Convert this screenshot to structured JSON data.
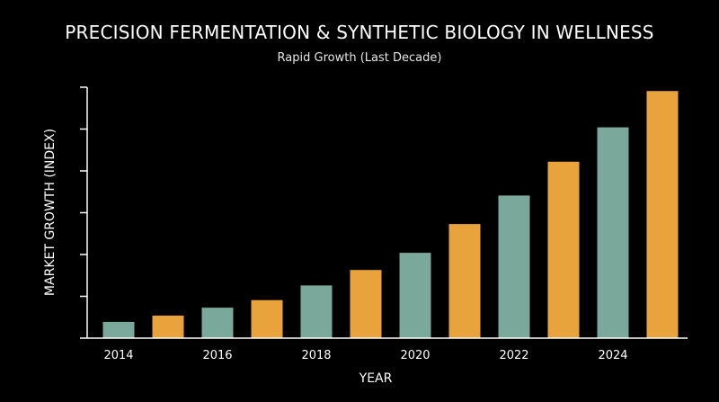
{
  "chart_data": {
    "type": "bar",
    "title": "PRECISION FERMENTATION & SYNTHETIC BIOLOGY IN WELLNESS",
    "subtitle": "Rapid Growth (Last Decade)",
    "xlabel": "YEAR",
    "ylabel": "MARKET GROWTH (INDEX)",
    "categories": [
      "2014",
      "2015",
      "2016",
      "2017",
      "2018",
      "2019",
      "2020",
      "2021",
      "2022",
      "2023",
      "2024",
      "2025"
    ],
    "x_tick_labels": [
      "2014",
      "2016",
      "2018",
      "2020",
      "2022",
      "2024"
    ],
    "values": [
      3.9,
      5.4,
      7.3,
      9.1,
      12.6,
      16.3,
      20.4,
      27.3,
      34.1,
      42.2,
      50.4,
      59.1
    ],
    "ylim": [
      0,
      60
    ],
    "y_ticks": [
      0,
      10,
      20,
      30,
      40,
      50,
      60
    ],
    "grid": false,
    "colors": [
      "#7aa99b",
      "#e8a33c"
    ]
  }
}
